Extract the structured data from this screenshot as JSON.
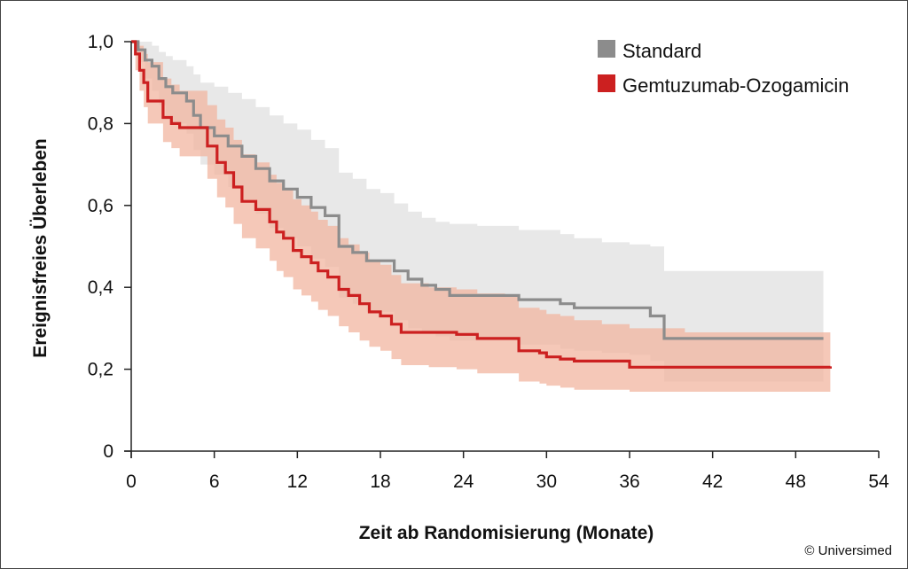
{
  "chart_data": {
    "type": "line",
    "title": "",
    "xlabel": "Zeit ab Randomisierung (Monate)",
    "ylabel": "Ereignisfreies Überleben",
    "xlim": [
      0,
      54
    ],
    "ylim": [
      0,
      1
    ],
    "xticks": [
      0,
      6,
      12,
      18,
      24,
      30,
      36,
      42,
      48,
      54
    ],
    "xtick_labels": [
      "0",
      "6",
      "12",
      "18",
      "24",
      "30",
      "36",
      "42",
      "48",
      "54"
    ],
    "yticks": [
      0,
      0.2,
      0.4,
      0.6,
      0.8,
      1.0
    ],
    "ytick_labels": [
      "0",
      "0,2",
      "0,4",
      "0,6",
      "0,8",
      "1,0"
    ],
    "grid": false,
    "legend_position": "top-right",
    "credit": "© Universimed",
    "series": [
      {
        "name": "Standard",
        "color": "#8c8c8c",
        "band_color": "#e6e6e6",
        "x": [
          0,
          0.5,
          1,
          1.5,
          2,
          2.5,
          3,
          4,
          4.5,
          5,
          6,
          7,
          8,
          9,
          10,
          11,
          12,
          13,
          14,
          15,
          16,
          17,
          18,
          19,
          20,
          21,
          22,
          23,
          25,
          28,
          29,
          31,
          32,
          34,
          36,
          37.5,
          38.5,
          44,
          50
        ],
        "y": [
          1.0,
          0.98,
          0.955,
          0.94,
          0.91,
          0.89,
          0.875,
          0.855,
          0.82,
          0.79,
          0.77,
          0.745,
          0.72,
          0.69,
          0.66,
          0.64,
          0.62,
          0.595,
          0.575,
          0.5,
          0.485,
          0.465,
          0.465,
          0.44,
          0.42,
          0.405,
          0.395,
          0.38,
          0.38,
          0.37,
          0.37,
          0.36,
          0.35,
          0.35,
          0.35,
          0.33,
          0.275,
          0.275,
          0.275
        ],
        "ci_upper": [
          1.0,
          1.0,
          1.0,
          0.99,
          0.975,
          0.965,
          0.955,
          0.94,
          0.92,
          0.9,
          0.89,
          0.875,
          0.86,
          0.84,
          0.82,
          0.8,
          0.785,
          0.76,
          0.74,
          0.68,
          0.665,
          0.64,
          0.63,
          0.605,
          0.585,
          0.57,
          0.56,
          0.555,
          0.55,
          0.54,
          0.54,
          0.53,
          0.52,
          0.51,
          0.505,
          0.5,
          0.44,
          0.44,
          0.435
        ],
        "ci_lower": [
          1.0,
          0.95,
          0.91,
          0.88,
          0.845,
          0.82,
          0.8,
          0.775,
          0.735,
          0.7,
          0.675,
          0.645,
          0.615,
          0.58,
          0.545,
          0.52,
          0.5,
          0.47,
          0.45,
          0.375,
          0.36,
          0.34,
          0.34,
          0.32,
          0.3,
          0.29,
          0.28,
          0.27,
          0.27,
          0.26,
          0.26,
          0.25,
          0.245,
          0.24,
          0.235,
          0.22,
          0.17,
          0.17,
          0.165
        ]
      },
      {
        "name": "Gemtuzumab-Ozogamicin",
        "color": "#cc2020",
        "band_color": "#f2b5a0",
        "x": [
          0,
          0.3,
          0.6,
          0.9,
          1.2,
          2.3,
          2.9,
          3.5,
          5.5,
          6.2,
          6.8,
          7.4,
          8,
          9,
          10,
          10.5,
          11,
          11.7,
          12.3,
          13,
          13.5,
          14.2,
          15,
          15.7,
          16.5,
          17.2,
          18,
          18.8,
          19.5,
          21.5,
          23.5,
          25,
          27,
          28,
          29.5,
          30,
          31,
          32,
          34,
          36,
          40,
          50.5
        ],
        "y": [
          1.0,
          0.97,
          0.93,
          0.9,
          0.855,
          0.815,
          0.8,
          0.79,
          0.745,
          0.705,
          0.68,
          0.645,
          0.61,
          0.59,
          0.56,
          0.535,
          0.52,
          0.49,
          0.475,
          0.46,
          0.44,
          0.425,
          0.395,
          0.38,
          0.36,
          0.34,
          0.33,
          0.31,
          0.29,
          0.29,
          0.285,
          0.275,
          0.275,
          0.245,
          0.24,
          0.23,
          0.225,
          0.22,
          0.22,
          0.205,
          0.205,
          0.207
        ],
        "ci_upper": [
          1.0,
          1.0,
          0.99,
          0.97,
          0.95,
          0.91,
          0.895,
          0.88,
          0.845,
          0.81,
          0.79,
          0.76,
          0.725,
          0.705,
          0.675,
          0.655,
          0.64,
          0.615,
          0.6,
          0.585,
          0.565,
          0.55,
          0.52,
          0.505,
          0.485,
          0.465,
          0.455,
          0.43,
          0.41,
          0.4,
          0.395,
          0.385,
          0.38,
          0.35,
          0.345,
          0.335,
          0.33,
          0.32,
          0.31,
          0.3,
          0.29,
          0.285
        ],
        "ci_lower": [
          1.0,
          0.93,
          0.88,
          0.84,
          0.8,
          0.755,
          0.74,
          0.72,
          0.665,
          0.62,
          0.595,
          0.555,
          0.52,
          0.495,
          0.465,
          0.44,
          0.425,
          0.395,
          0.38,
          0.365,
          0.345,
          0.33,
          0.305,
          0.29,
          0.27,
          0.255,
          0.245,
          0.225,
          0.21,
          0.205,
          0.2,
          0.19,
          0.19,
          0.17,
          0.165,
          0.16,
          0.155,
          0.15,
          0.15,
          0.145,
          0.145,
          0.15
        ]
      }
    ]
  }
}
